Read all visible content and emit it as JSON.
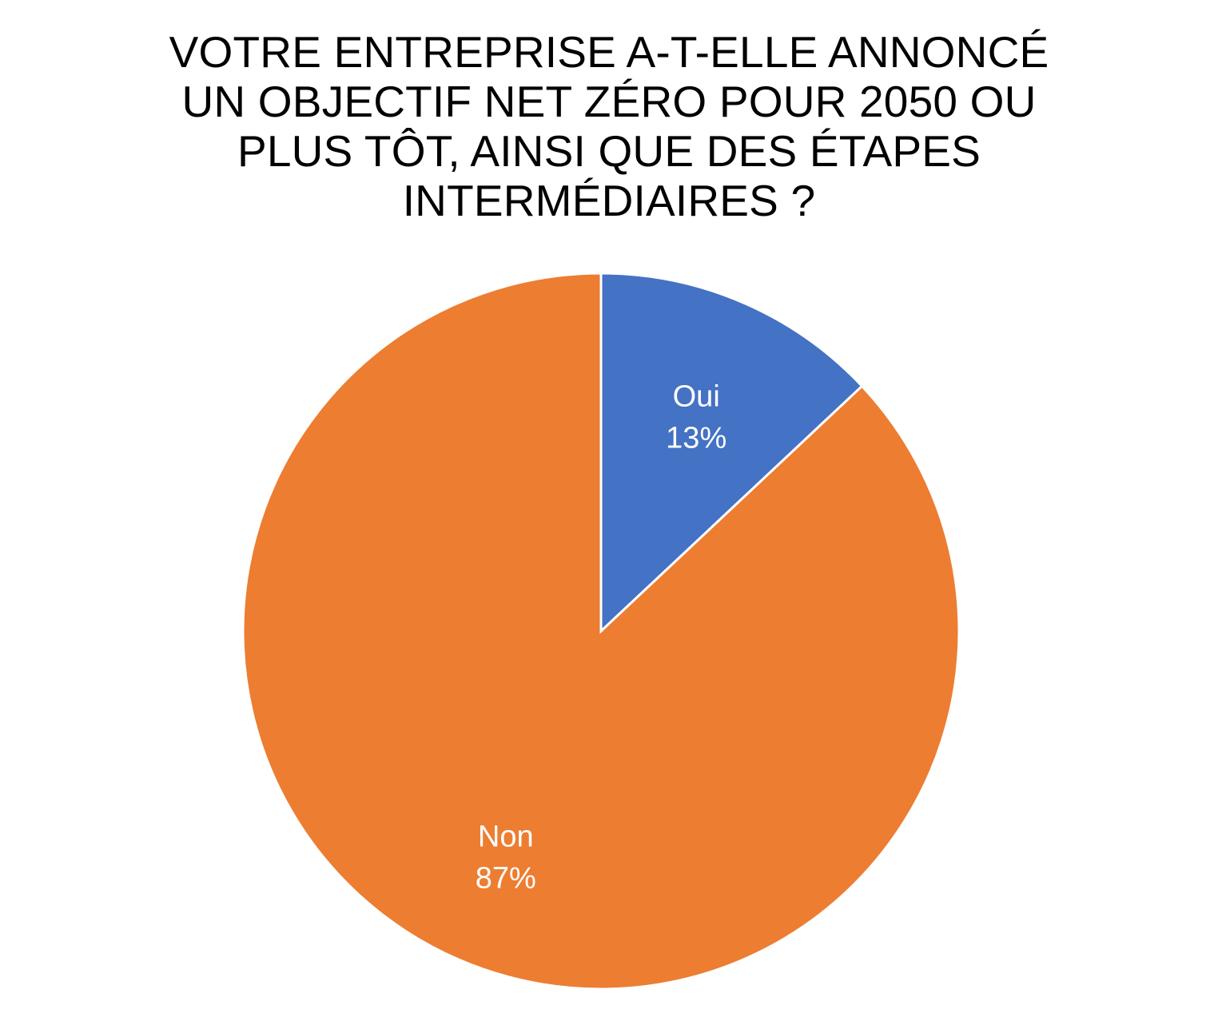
{
  "chart_data": {
    "type": "pie",
    "title_lines": [
      "VOTRE ENTREPRISE A-T-ELLE ANNONCÉ",
      "UN OBJECTIF NET ZÉRO POUR 2050 OU",
      "PLUS TÔT, AINSI QUE DES ÉTAPES",
      "INTERMÉDIAIRES ?"
    ],
    "slices": [
      {
        "label": "Oui",
        "value": 13,
        "display": "13%",
        "color": "#4472C4"
      },
      {
        "label": "Non",
        "value": 87,
        "display": "87%",
        "color": "#ED7D31"
      }
    ],
    "start_angle_deg": 0,
    "direction": "clockwise",
    "legend": "none",
    "data_labels": "inside"
  }
}
